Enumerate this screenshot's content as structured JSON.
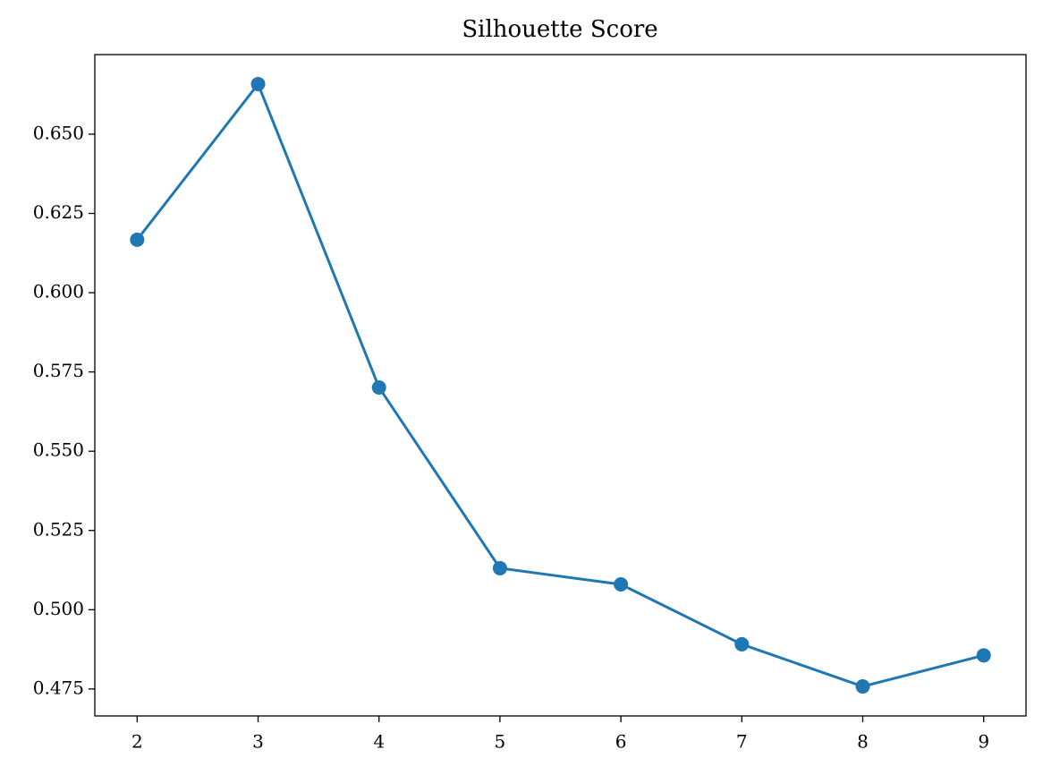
{
  "chart_data": {
    "type": "line",
    "title": "Silhouette Score",
    "x": [
      2,
      3,
      4,
      5,
      6,
      7,
      8,
      9
    ],
    "series": [
      {
        "color": "#1f77b4",
        "values": [
          0.6167,
          0.6658,
          0.5701,
          0.5131,
          0.508,
          0.4891,
          0.4758,
          0.4856
        ]
      }
    ],
    "xlim": [
      1.65,
      9.35
    ],
    "xticks": [
      2,
      3,
      4,
      5,
      6,
      7,
      8,
      9
    ],
    "ylim": [
      0.4665,
      0.6751
    ],
    "yticks": [
      0.475,
      {
        "value": 0.5,
        "label": "0.500"
      },
      0.525,
      {
        "value": 0.55,
        "label": "0.550"
      },
      0.575,
      {
        "value": 0.6,
        "label": "0.600"
      },
      0.625,
      {
        "value": 0.65,
        "label": "0.650"
      }
    ],
    "grid": false,
    "markers": true
  }
}
